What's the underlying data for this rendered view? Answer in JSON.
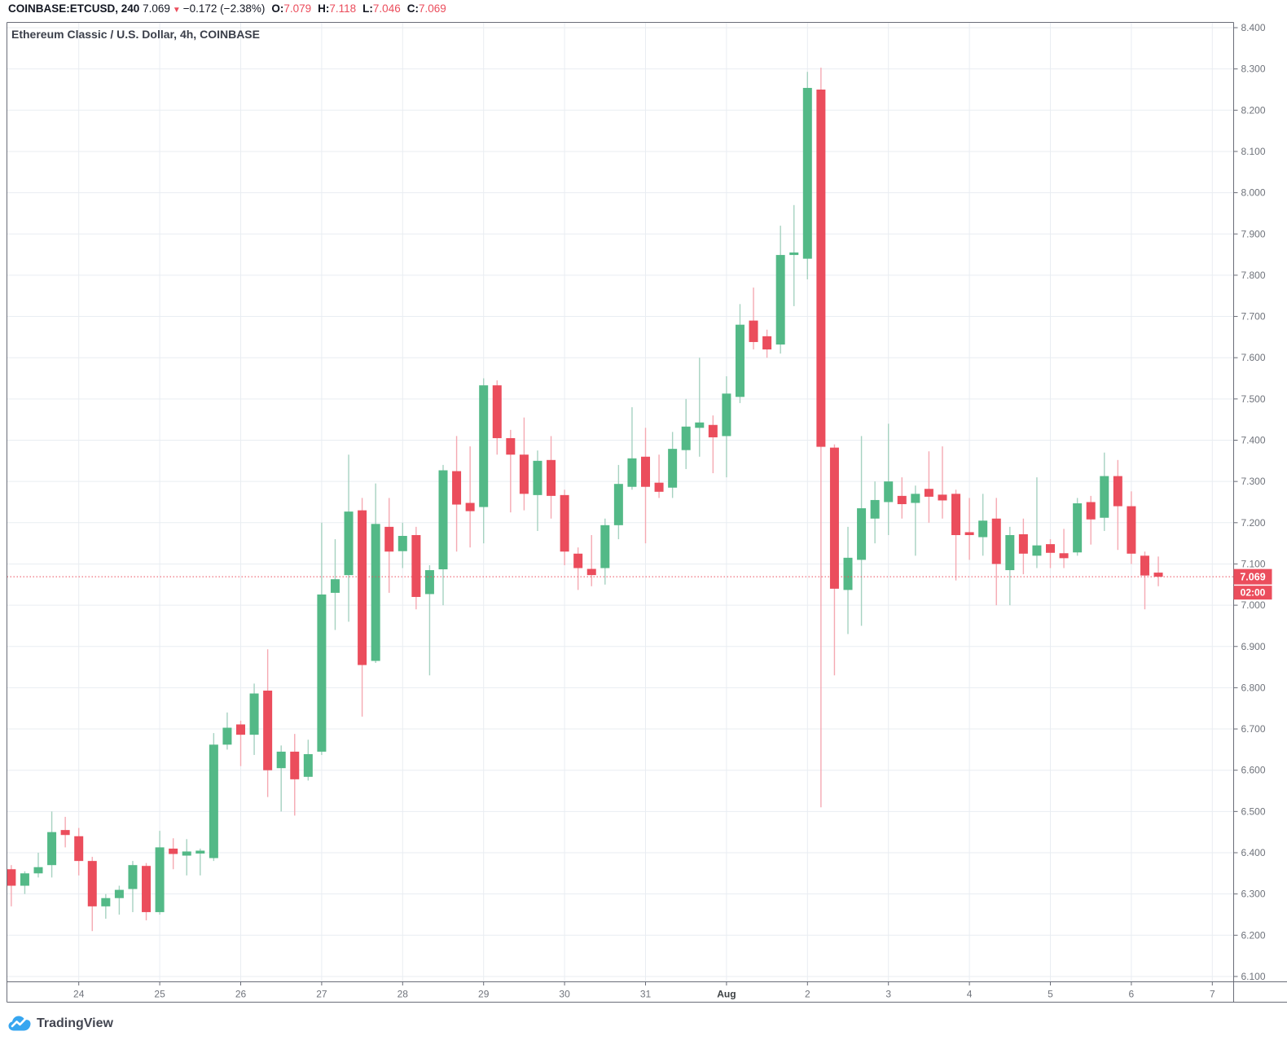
{
  "header": {
    "symbol": "COINBASE:ETCUSD, 240",
    "last_price": "7.069",
    "direction": "▼",
    "change": "−0.172 (−2.38%)",
    "o_label": "O:",
    "o_value": "7.079",
    "h_label": "H:",
    "h_value": "7.118",
    "l_label": "L:",
    "l_value": "7.046",
    "c_label": "C:",
    "c_value": "7.069"
  },
  "legend": {
    "title": "Ethereum Classic / U.S. Dollar, 4h, COINBASE"
  },
  "logo": {
    "text": "TradingView"
  },
  "price_label": {
    "value": "7.069",
    "countdown": "02:00"
  },
  "colors": {
    "up": "#53b987",
    "down": "#eb4d5c",
    "wick_up": "#a6d2c1",
    "wick_down": "#f5a9b2",
    "grid": "#e9edf2",
    "border": "#6a6d78",
    "axis_text": "#6f737b",
    "axis_text_month": "#3c4043",
    "price_line": "#eb4d5c",
    "label_box": "#eb4d5c",
    "label_text": "#ffffff",
    "logo_blue": "#37a6f0"
  },
  "chart_data": {
    "type": "candlestick",
    "title": "Ethereum Classic / U.S. Dollar",
    "symbol": "COINBASE:ETCUSD",
    "interval": "4h",
    "exchange": "COINBASE",
    "grid": true,
    "y_axis": {
      "min": 6.1,
      "max": 8.4,
      "step": 0.1,
      "side": "right",
      "tick_labels": [
        "8.400",
        "8.300",
        "8.200",
        "8.100",
        "8.000",
        "7.900",
        "7.800",
        "7.700",
        "7.600",
        "7.500",
        "7.400",
        "7.300",
        "7.200",
        "7.100",
        "7.000",
        "6.900",
        "6.800",
        "6.700",
        "6.600",
        "6.500",
        "6.400",
        "6.300",
        "6.200",
        "6.100"
      ]
    },
    "x_axis": {
      "ticks": [
        {
          "index": 5,
          "label": "24"
        },
        {
          "index": 11,
          "label": "25"
        },
        {
          "index": 17,
          "label": "26"
        },
        {
          "index": 23,
          "label": "27"
        },
        {
          "index": 29,
          "label": "28"
        },
        {
          "index": 35,
          "label": "29"
        },
        {
          "index": 41,
          "label": "30"
        },
        {
          "index": 47,
          "label": "31"
        },
        {
          "index": 53,
          "label": "Aug"
        },
        {
          "index": 59,
          "label": "2"
        },
        {
          "index": 65,
          "label": "3"
        },
        {
          "index": 71,
          "label": "4"
        },
        {
          "index": 77,
          "label": "5"
        },
        {
          "index": 83,
          "label": "6"
        },
        {
          "index": 89,
          "label": "7"
        }
      ]
    },
    "price_line": 7.069,
    "last_price": 7.069,
    "countdown": "02:00",
    "candles_ohlc": [
      [
        6.36,
        6.37,
        6.27,
        6.32
      ],
      [
        6.32,
        6.355,
        6.3,
        6.35
      ],
      [
        6.35,
        6.4,
        6.34,
        6.365
      ],
      [
        6.37,
        6.5,
        6.34,
        6.45
      ],
      [
        6.455,
        6.487,
        6.413,
        6.443
      ],
      [
        6.44,
        6.46,
        6.345,
        6.38
      ],
      [
        6.38,
        6.39,
        6.21,
        6.27
      ],
      [
        6.27,
        6.3,
        6.24,
        6.29
      ],
      [
        6.29,
        6.32,
        6.25,
        6.31
      ],
      [
        6.312,
        6.38,
        6.256,
        6.37
      ],
      [
        6.368,
        6.375,
        6.236,
        6.256
      ],
      [
        6.256,
        6.453,
        6.25,
        6.413
      ],
      [
        6.41,
        6.435,
        6.36,
        6.397
      ],
      [
        6.393,
        6.433,
        6.345,
        6.403
      ],
      [
        6.398,
        6.41,
        6.345,
        6.405
      ],
      [
        6.387,
        6.69,
        6.38,
        6.662
      ],
      [
        6.662,
        6.74,
        6.65,
        6.703
      ],
      [
        6.711,
        6.72,
        6.61,
        6.686
      ],
      [
        6.686,
        6.81,
        6.637,
        6.786
      ],
      [
        6.793,
        6.893,
        6.535,
        6.6
      ],
      [
        6.605,
        6.66,
        6.5,
        6.645
      ],
      [
        6.645,
        6.688,
        6.49,
        6.578
      ],
      [
        6.584,
        6.674,
        6.575,
        6.639
      ],
      [
        6.645,
        7.2,
        6.637,
        7.026
      ],
      [
        7.03,
        7.16,
        6.94,
        7.063
      ],
      [
        7.073,
        7.365,
        6.96,
        7.227
      ],
      [
        7.23,
        7.26,
        6.73,
        6.855
      ],
      [
        6.865,
        7.295,
        6.86,
        7.197
      ],
      [
        7.19,
        7.26,
        7.03,
        7.13
      ],
      [
        7.131,
        7.2,
        7.09,
        7.168
      ],
      [
        7.17,
        7.19,
        6.99,
        7.02
      ],
      [
        7.027,
        7.097,
        6.83,
        7.085
      ],
      [
        7.087,
        7.34,
        7.0,
        7.327
      ],
      [
        7.325,
        7.41,
        7.13,
        7.244
      ],
      [
        7.248,
        7.385,
        7.14,
        7.228
      ],
      [
        7.238,
        7.55,
        7.15,
        7.533
      ],
      [
        7.533,
        7.545,
        7.365,
        7.405
      ],
      [
        7.405,
        7.425,
        7.225,
        7.365
      ],
      [
        7.365,
        7.455,
        7.23,
        7.27
      ],
      [
        7.267,
        7.375,
        7.18,
        7.35
      ],
      [
        7.352,
        7.41,
        7.21,
        7.265
      ],
      [
        7.267,
        7.28,
        7.097,
        7.13
      ],
      [
        7.125,
        7.14,
        7.037,
        7.09
      ],
      [
        7.088,
        7.17,
        7.046,
        7.073
      ],
      [
        7.09,
        7.21,
        7.05,
        7.194
      ],
      [
        7.194,
        7.34,
        7.16,
        7.294
      ],
      [
        7.287,
        7.48,
        7.28,
        7.356
      ],
      [
        7.36,
        7.43,
        7.15,
        7.287
      ],
      [
        7.297,
        7.365,
        7.26,
        7.275
      ],
      [
        7.285,
        7.42,
        7.26,
        7.379
      ],
      [
        7.376,
        7.5,
        7.33,
        7.433
      ],
      [
        7.43,
        7.6,
        7.36,
        7.443
      ],
      [
        7.437,
        7.46,
        7.32,
        7.407
      ],
      [
        7.41,
        7.555,
        7.31,
        7.513
      ],
      [
        7.505,
        7.73,
        7.49,
        7.68
      ],
      [
        7.69,
        7.77,
        7.62,
        7.638
      ],
      [
        7.652,
        7.668,
        7.6,
        7.62
      ],
      [
        7.632,
        7.92,
        7.61,
        7.849
      ],
      [
        7.849,
        7.97,
        7.725,
        7.855
      ],
      [
        7.84,
        8.293,
        7.79,
        8.254
      ],
      [
        8.25,
        8.303,
        6.51,
        7.384
      ],
      [
        7.382,
        7.39,
        6.83,
        7.04
      ],
      [
        7.037,
        7.19,
        6.93,
        7.115
      ],
      [
        7.11,
        7.41,
        6.95,
        7.235
      ],
      [
        7.21,
        7.3,
        7.15,
        7.255
      ],
      [
        7.25,
        7.44,
        7.17,
        7.3
      ],
      [
        7.265,
        7.31,
        7.21,
        7.245
      ],
      [
        7.248,
        7.29,
        7.12,
        7.27
      ],
      [
        7.282,
        7.373,
        7.2,
        7.263
      ],
      [
        7.268,
        7.385,
        7.21,
        7.254
      ],
      [
        7.27,
        7.28,
        7.06,
        7.17
      ],
      [
        7.177,
        7.26,
        7.11,
        7.17
      ],
      [
        7.165,
        7.27,
        7.12,
        7.205
      ],
      [
        7.21,
        7.26,
        7.0,
        7.1
      ],
      [
        7.085,
        7.19,
        7.0,
        7.17
      ],
      [
        7.172,
        7.21,
        7.075,
        7.125
      ],
      [
        7.12,
        7.31,
        7.09,
        7.145
      ],
      [
        7.148,
        7.16,
        7.09,
        7.127
      ],
      [
        7.126,
        7.185,
        7.09,
        7.114
      ],
      [
        7.128,
        7.26,
        7.12,
        7.247
      ],
      [
        7.25,
        7.265,
        7.147,
        7.208
      ],
      [
        7.212,
        7.37,
        7.18,
        7.313
      ],
      [
        7.313,
        7.352,
        7.134,
        7.24
      ],
      [
        7.24,
        7.276,
        7.1,
        7.125
      ],
      [
        7.12,
        7.13,
        6.99,
        7.072
      ],
      [
        7.079,
        7.118,
        7.046,
        7.069
      ]
    ]
  }
}
